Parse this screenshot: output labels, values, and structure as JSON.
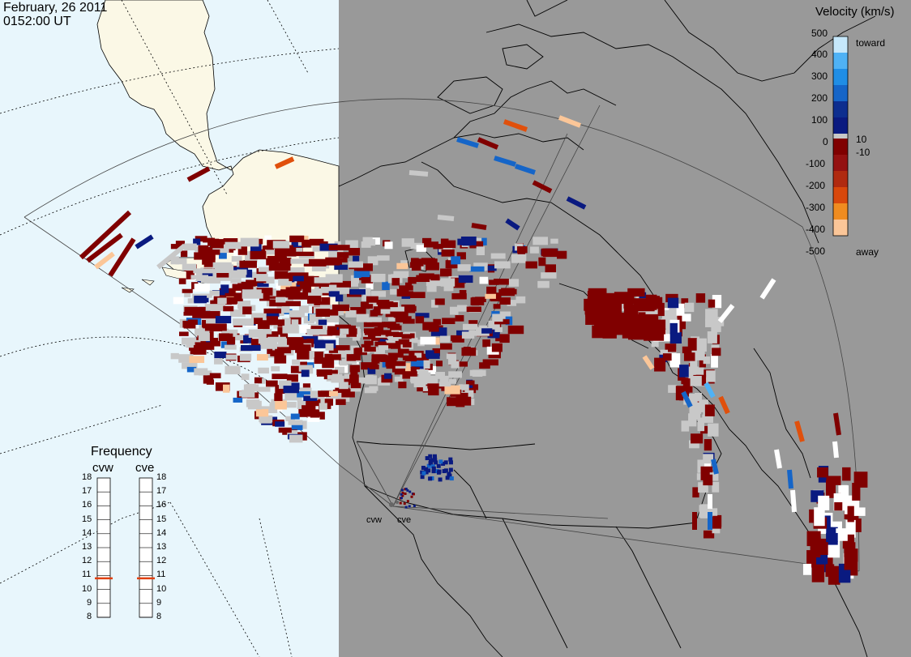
{
  "header": {
    "date": "February, 26 2011",
    "time": "0152:00 UT"
  },
  "colors": {
    "ocean": "#e8f6fc",
    "land": "#fbf8e6",
    "night": "#999999",
    "ground_scatter": "#c8c8c8"
  },
  "colorbar": {
    "title": "Velocity (km/s)",
    "tick_labels": [
      "500",
      "400",
      "300",
      "200",
      "100",
      "10",
      "0",
      "-10",
      "-100",
      "-200",
      "-300",
      "-400",
      "-500"
    ],
    "toward_label": "toward",
    "away_label": "away",
    "colors": [
      "#c6e8fb",
      "#4fb2f5",
      "#1f8ee6",
      "#1565c8",
      "#0d2e8f",
      "#0a1a80",
      "#c8c8c8",
      "#800000",
      "#941111",
      "#b02a10",
      "#d8480c",
      "#f08c20",
      "#fbc698"
    ]
  },
  "frequency_panel": {
    "title": "Frequency",
    "radars": [
      {
        "label": "cvw",
        "value": 10.8
      },
      {
        "label": "cve",
        "value": 10.8
      }
    ],
    "scale_labels": [
      "18",
      "17",
      "16",
      "15",
      "14",
      "13",
      "12",
      "11",
      "10",
      "9",
      "8"
    ]
  },
  "radar_sites": [
    {
      "label": "cvw"
    },
    {
      "label": "cve"
    }
  ]
}
